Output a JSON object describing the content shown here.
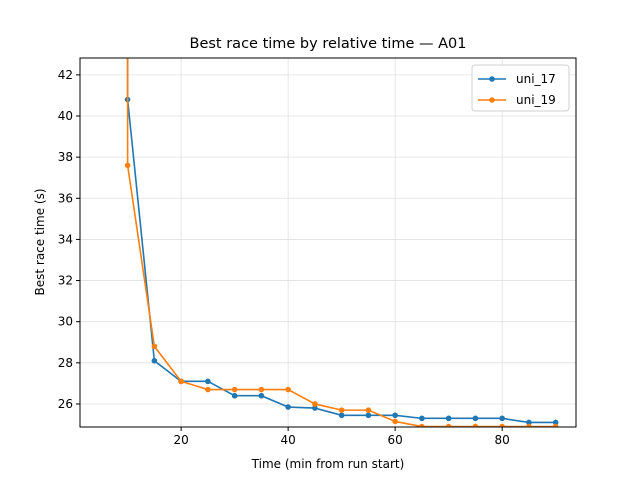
{
  "chart_data": {
    "type": "line",
    "title": "Best race time by relative time — A01",
    "xlabel": "Time (min from run start)",
    "ylabel": "Best race time (s)",
    "xlim": [
      1.1,
      93.8
    ],
    "ylim": [
      24.88,
      42.82
    ],
    "xticks": [
      20,
      40,
      60,
      80
    ],
    "yticks": [
      26,
      28,
      30,
      32,
      34,
      36,
      38,
      40,
      42
    ],
    "grid": true,
    "legend_position": "top-right",
    "series": [
      {
        "name": "uni_17",
        "color": "#1f77b4",
        "x": [
          10,
          10,
          15,
          20,
          25,
          30,
          35,
          40,
          45,
          50,
          55,
          60,
          65,
          70,
          75,
          80,
          85,
          90
        ],
        "y": [
          55,
          40.8,
          28.1,
          27.1,
          27.1,
          26.4,
          26.4,
          25.85,
          25.8,
          25.45,
          25.45,
          25.45,
          25.3,
          25.3,
          25.3,
          25.3,
          25.1,
          25.1
        ]
      },
      {
        "name": "uni_19",
        "color": "#ff7f0e",
        "x": [
          10,
          10,
          15,
          20,
          25,
          30,
          35,
          40,
          45,
          50,
          55,
          60,
          65,
          70,
          75,
          80,
          85,
          90
        ],
        "y": [
          55,
          37.6,
          28.8,
          27.1,
          26.7,
          26.7,
          26.7,
          26.7,
          26.0,
          25.7,
          25.7,
          25.15,
          24.9,
          24.9,
          24.9,
          24.9,
          24.9,
          24.9
        ]
      }
    ]
  }
}
